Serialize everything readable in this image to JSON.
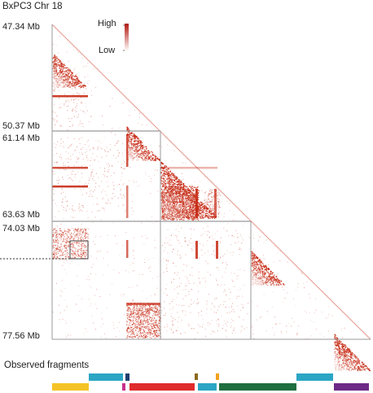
{
  "title": "BxPC3 Chr 18",
  "legend": {
    "high_label": "High",
    "low_label": "Low",
    "color_high": "#b2180f",
    "color_low": "#ffffff"
  },
  "axis_labels": [
    "47.34 Mb",
    "50.37 Mb",
    "61.14 Mb",
    "63.63 Mb",
    "74.03 Mb",
    "77.56 Mb"
  ],
  "map_color": "#c62a14",
  "fragments_title": "Observed fragments",
  "fragment_colors": {
    "yellow": "#f5c327",
    "cyan": "#2ba6c4",
    "navy": "#1d3f6e",
    "magenta": "#c8308c",
    "red": "#e02b2b",
    "olive": "#8b6a1e",
    "orange": "#f3a21c",
    "green": "#1f6e40",
    "purple": "#6c2a86"
  }
}
